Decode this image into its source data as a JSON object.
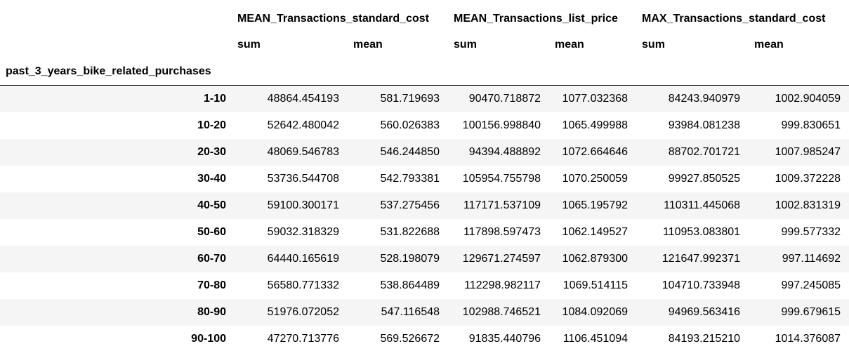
{
  "header": {
    "groups": [
      "MEAN_Transactions_standard_cost",
      "MEAN_Transactions_list_price",
      "MAX_Transactions_standard_cost"
    ],
    "subheaders": [
      "sum",
      "mean",
      "sum",
      "mean",
      "sum",
      "mean"
    ],
    "index_name": "past_3_years_bike_related_purchases"
  },
  "rows": [
    {
      "index": "1-10",
      "values": [
        "48864.454193",
        "581.719693",
        "90470.718872",
        "1077.032368",
        "84243.940979",
        "1002.904059"
      ]
    },
    {
      "index": "10-20",
      "values": [
        "52642.480042",
        "560.026383",
        "100156.998840",
        "1065.499988",
        "93984.081238",
        "999.830651"
      ]
    },
    {
      "index": "20-30",
      "values": [
        "48069.546783",
        "546.244850",
        "94394.488892",
        "1072.664646",
        "88702.701721",
        "1007.985247"
      ]
    },
    {
      "index": "30-40",
      "values": [
        "53736.544708",
        "542.793381",
        "105954.755798",
        "1070.250059",
        "99927.850525",
        "1009.372228"
      ]
    },
    {
      "index": "40-50",
      "values": [
        "59100.300171",
        "537.275456",
        "117171.537109",
        "1065.195792",
        "110311.445068",
        "1002.831319"
      ]
    },
    {
      "index": "50-60",
      "values": [
        "59032.318329",
        "531.822688",
        "117898.597473",
        "1062.149527",
        "110953.083801",
        "999.577332"
      ]
    },
    {
      "index": "60-70",
      "values": [
        "64440.165619",
        "528.198079",
        "129671.274597",
        "1062.879300",
        "121647.992371",
        "997.114692"
      ]
    },
    {
      "index": "70-80",
      "values": [
        "56580.771332",
        "538.864489",
        "112298.982117",
        "1069.514115",
        "104710.733948",
        "997.245085"
      ]
    },
    {
      "index": "80-90",
      "values": [
        "51976.072052",
        "547.116548",
        "102988.746521",
        "1084.092069",
        "94969.563416",
        "999.679615"
      ]
    },
    {
      "index": "90-100",
      "values": [
        "47270.713776",
        "569.526672",
        "91835.440796",
        "1106.451094",
        "84193.215210",
        "1014.376087"
      ]
    }
  ]
}
